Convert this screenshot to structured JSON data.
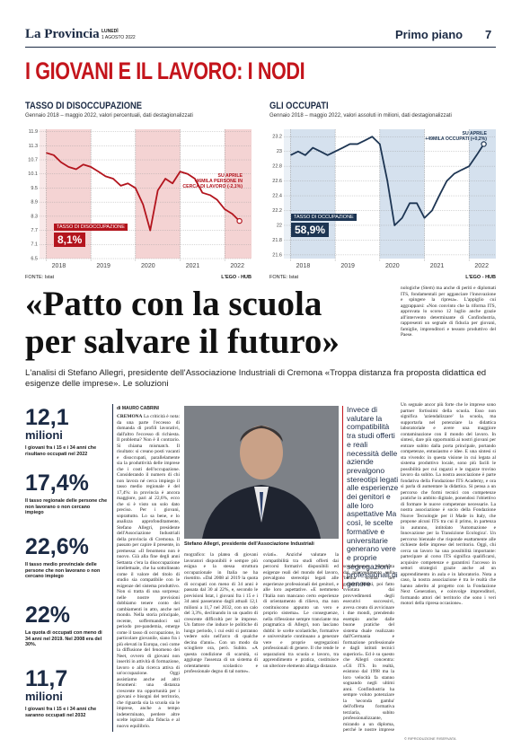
{
  "header": {
    "masthead": "La Provincia",
    "day": "LUNEDÌ",
    "date": "1 AGOSTO 2022",
    "section": "Primo piano",
    "page": "7"
  },
  "kicker": "I GIOVANI E IL LAVORO: I NODI",
  "charts": [
    {
      "type": "line",
      "title": "TASSO DI DISOCCUPAZIONE",
      "subtitle": "Gennaio 2018 – maggio 2022, valori percentuali, dati destagionalizzati",
      "color": "#b3141d",
      "band_color": "#f4d3d3",
      "x": [
        2018.0,
        2018.17,
        2018.33,
        2018.5,
        2018.67,
        2018.83,
        2019.0,
        2019.17,
        2019.33,
        2019.5,
        2019.67,
        2019.83,
        2020.0,
        2020.17,
        2020.33,
        2020.5,
        2020.67,
        2020.83,
        2021.0,
        2021.17,
        2021.33,
        2021.5,
        2021.67,
        2021.83,
        2022.0,
        2022.17,
        2022.33
      ],
      "values": [
        11.0,
        10.9,
        10.6,
        10.4,
        10.3,
        10.5,
        10.4,
        10.2,
        10.0,
        9.9,
        9.6,
        9.7,
        9.5,
        8.8,
        7.7,
        9.4,
        9.9,
        9.7,
        10.2,
        10.1,
        9.9,
        9.3,
        9.2,
        9.0,
        8.6,
        8.4,
        8.1
      ],
      "xlim": [
        2017.85,
        2022.6
      ],
      "xticks": [
        2018,
        2019,
        2020,
        2021,
        2022
      ],
      "ylim": [
        6.5,
        12.0
      ],
      "yticks": [
        6.5,
        7.1,
        7.7,
        8.3,
        8.9,
        9.5,
        10.1,
        10.7,
        11.3,
        11.9
      ],
      "annotation": [
        "SU APRILE",
        "-46MILA PERSONE IN CERCA DI LAVORO (-2,1%)"
      ],
      "series_label": "TASSO DI DISOCCUPAZIONE",
      "series_value": "8,1%",
      "source": "FONTE: Istat",
      "credit": "L'EGO - HUB"
    },
    {
      "type": "line",
      "title": "GLI OCCUPATI",
      "subtitle": "Gennaio 2018 – maggio 2022, valori assoluti in milioni, dati destagionalizzati",
      "color": "#1d3553",
      "band_color": "#d5e1ee",
      "x": [
        2018.0,
        2018.17,
        2018.33,
        2018.5,
        2018.67,
        2018.83,
        2019.0,
        2019.17,
        2019.33,
        2019.5,
        2019.67,
        2019.83,
        2020.0,
        2020.17,
        2020.33,
        2020.5,
        2020.67,
        2020.83,
        2021.0,
        2021.17,
        2021.33,
        2021.5,
        2021.67,
        2021.83,
        2022.0,
        2022.17,
        2022.33
      ],
      "values": [
        22.95,
        23.0,
        22.95,
        23.05,
        23.0,
        22.95,
        23.0,
        23.05,
        23.1,
        23.1,
        23.15,
        23.2,
        23.1,
        22.6,
        22.0,
        22.1,
        22.3,
        22.3,
        22.1,
        22.2,
        22.4,
        22.6,
        22.7,
        22.75,
        22.8,
        22.95,
        23.1
      ],
      "xlim": [
        2017.85,
        2022.6
      ],
      "xticks": [
        2018,
        2019,
        2020,
        2021,
        2022
      ],
      "ylim": [
        21.55,
        23.3
      ],
      "yticks": [
        21.6,
        21.8,
        22,
        22.2,
        22.4,
        22.6,
        22.8,
        23,
        23.2
      ],
      "annotation": [
        "SU APRILE",
        "+49MILA OCCUPATI (+0,2%)"
      ],
      "series_label": "TASSO DI OCCUPAZIONE",
      "series_value": "58,9%",
      "source": "FONTE: Istat",
      "credit": "L'EGO - HUB"
    }
  ],
  "article": {
    "title": [
      "«Patto con la scuola",
      "per salvare il futuro»"
    ],
    "subtitle": "L'analisi di Stefano Allegri, presidente dell'Associazione Industriali di Cremona «Troppa distanza fra proposta didattica ed esigenze delle imprese». Le soluzioni",
    "byline": "di MAURO CABRINI",
    "dateline": "CREMONA",
    "body": [
      "La criticità è nota: da una parte l'eccesso di domanda di profili lavorativi, dall'altro l'eccesso di richiesta. Il problema? Non è il contrario. Si chiama mismatch. Il risultato: si creano posti vacanti e disoccupati, parallelamente sia la produttività delle imprese che i costi dell'occupazione. Considerando il numero di chi non lavora né cerca impiego il tasso medio regionale è del 17,4%: in provincia è ancora maggiore, pari al 22,6%, ecco che si è visto un solo dato preciso. Per i giovani, soprattutto. Lo sa bene, e lo analizza approfonditamente, Stefano Allegri, presidente dell'Associazione Industriali della provincia di Cremona. Il passato per capire il presente, in premessa: «Il fenomeno non è nuovo. Già alla fine degli anni Settanta c'era la disoccupazione intellettuale, che ha sottolineato come il valore del titolo di studio sia compatibile con le esigenze del sistema produttivo. Non si tratta di una sorpresa: nelle nostre previsioni dobbiamo tenere conto dei cambiamenti in atto, anche nel mondo. Nella storia principale, recente, soffermandoci sul periodo pre-pandemia, emerge come il tasso di occupazione, in particolare giovanile, siano fra i più elevati in Europa, così come la diffusione del fenomeno dei Neet, ovvero di giovani non inseriti in attività di formazione, lavoro o alla ricerca attiva di un'occupazione. Oggi assistiamo anche ad altri fenomeni: una distanza crescente tra opportunità per i giovani e bisogni del territorio, che riguarda sia la scuola sia le imprese, anche a tempo indeterminato, perdere altre scelte ispirate alla fiducia e al nuovo equilibrio.",
      "mografico: la platea di giovani lavoratori disponibili è sempre più esigua e la stessa struttura occupazionale in Italia ne ha risentito. «Dal 2008 al 2019 la quota di occupati con meno di 34 anni è passata dal 30 al 22%, e, secondo le previsioni Istat, i giovani fra i 15 e i 34 anni passeranno dagli attuali 12,1 milioni a 11,7 nel 2032, con un calo del 3,3%, declinando in un quadro di crescente difficoltà per le imprese. Un fattore che induce le politiche di lungo periodo, i cui esiti si potranno vedere solo nell'arco di qualche decina d'anni». Con un modo da sciogliere ora, però. Subito. «A questa condizione di scarsità, si aggiunge l'assenza di un sistema di orientamento scolastico e professionale degno di tal nome».",
      "sviati». Anziché valutare la compatibilità tra studi offerti dai percorsi formativi disponibili ed esigenze reali del mondo del lavoro, prevalgono stereotipi legati alle esperienze professionali dei genitori, e alle loro aspettative. «E nemmeno l'Italia non mancano certo esperienze di orientamento di rilievo, ma non costituiscono appunto un vero e proprio sistema». Le conseguenze, nella riflessione sempre tranciante ma pragmatica di Allegri, non lasciano dubbi: le scelte scolastiche, formative e universitarie continuano a generare vere e proprie segregazioni professionali di genere. Il che rende le separazioni tra scuola e lavoro, tra apprendimento e pratica, costituisce un ulteriore elemento allarga distanze.",
      "scuola-lavoro introdotta dal provvedimento sulla 'buona scuola' del governo Renzi, poi fatto svuotata dai provvedimenti degli esecutivi successivi, aveva creato di avvicinare i due mondi, prendendo esempio anche dalle buone pratiche del sistema duale realizzato dall'Germania e formazione professionale e dagli istituti tecnici superiori». Ed è su questo che Allegri concentra: «Gli ITS. In realtà, esistono dal 1998 ma la loro velocità fa stanno sognando negli ultimi anni. Confindustria ha sempre voluto potenziare la 'seconda gamba' dell'offerta formativa terziaria, subito professionalizzante, mirando a un diploma, perché le nostre imprese hanno bisogno di persone qualificate: laureati, soprattutto nelle discipline scientifico-tec-"
    ],
    "right_column": [
      "nologiche (Stem) ma anche di periti e diplomati ITS, fondamentali per agganciare l'innovazione e spingere la ripresa». L'appiglio cui aggrapparsi: «Non convinto che la riforma ITS, approvata lo scorso 12 luglio anche grazie all'intervento determinante di Confindustria, rappresenti un segnale di fiducia per giovani, famiglie, imprenditori e tessuto produttivo del Paese.",
      "Un segnale ancor più forte che le imprese sono partner fortissimi della scuola. Esso non significa 'aziendalizzare' la scuola, ma supportarla nel potenziare la didattica laboratoriale e avere una maggiore contaminazione con il mondo del lavoro. In sintesi, dare più opportunità ai nostri giovani per entrare subito dalla porta principale, portando competenze, entusiasmo e idee. E una sintesi si sta vivendo: in questa visione in cui legata al sistema produttivo locale, sono più facili le possibilità per cui ragazzi e le ragazze trovino lavoro da subito. La nostra associazione è parte fondativa della Fondazione ITS Academy, e ora si parla di aumentare la didattica. Si pensa a un percorso che formi tecnici con competenze pratiche in ambito digitale, ponendosi l'obiettivo di formare le nuove competenze necessarie. La nostra associazione è socio della Fondazione Nuove Tecnologie per il Made in Italy, che propone alcuni ITS tra cui il primo, in partenza in autunno, intitolato 'Automazione e Innovazione per la Transizione Ecologica'. Un percorso biennale che risponde esattamente alle richieste delle imprese del territorio. Oggi, chi cerca un lavoro ha una possibilità importante: partecipare al corso ITS significa qualificarsi, acquisire competenze e garantirsi l'accesso in settori strategici grazie anche ad un apprendimento in aula e in laboratorio. Nota a caso, la nostra associazione è tra le realtà che hanno aderito al progetto con la Fondazione Next Generation, e coinvolge imprenditori, formando attori del territorio che sono i veri motori della ripresa occasione»."
    ],
    "photo_caption": "Stefano Allegri, presidente dell'Associazione Industriali",
    "quote": "Invece di valutare la compatibilità tra studi offerti e reali necessità delle aziende prevalgono stereotipi legati alle esperienze dei genitori e alle loro aspettative Ma così, le scelte formative e universitarie generano vere e proprie segregazioni professionali di genere",
    "footer": "© RIPRODUZIONE RISERVATA"
  },
  "stats": [
    {
      "value": "12,1",
      "unit": "milioni",
      "text": "I giovani fra i 15 e i 34 anni che risultano occupati nel 2022"
    },
    {
      "value": "17,4%",
      "text": "Il tasso regionale delle persone che non lavorano o non cercano impiego"
    },
    {
      "value": "22,6%",
      "text": "Il tasso medio provinciale delle persone che non lavorano o non cercano impiego"
    },
    {
      "value": "22%",
      "text": "La quota di occupati con meno di 34 anni nel 2019. Nel 2008 era del 30%."
    },
    {
      "value": "11,7",
      "unit": "milioni",
      "text": "I giovani fra i 15 e i 34 anni che saranno occupati nel 2032"
    }
  ]
}
